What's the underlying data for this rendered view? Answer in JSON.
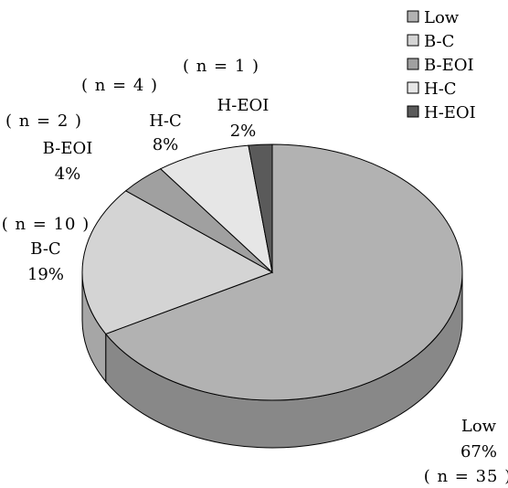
{
  "chart_data": {
    "type": "pie",
    "style": "3d",
    "title": "",
    "categories": [
      "Low",
      "B-C",
      "B-EOI",
      "H-C",
      "H-EOI"
    ],
    "values": [
      67,
      19,
      4,
      8,
      2
    ],
    "counts": [
      35,
      10,
      2,
      4,
      1
    ],
    "value_labels": [
      "67%",
      "19%",
      "4%",
      "8%",
      "2%"
    ],
    "count_labels": [
      "( n = 35 )",
      "( n = 10 )",
      "( n = 2 )",
      "( n = 4 )",
      "( n = 1 )"
    ],
    "colors": [
      "#b2b2b2",
      "#d4d4d4",
      "#a0a0a0",
      "#e6e6e6",
      "#5a5a5a"
    ],
    "side_colors": [
      "#888888",
      "#a6a6a6",
      "#7a7a7a",
      "#b8b8b8",
      "#404040"
    ],
    "legend": {
      "position": "top-right",
      "entries": [
        "Low",
        "B-C",
        "B-EOI",
        "H-C",
        "H-EOI"
      ]
    }
  }
}
